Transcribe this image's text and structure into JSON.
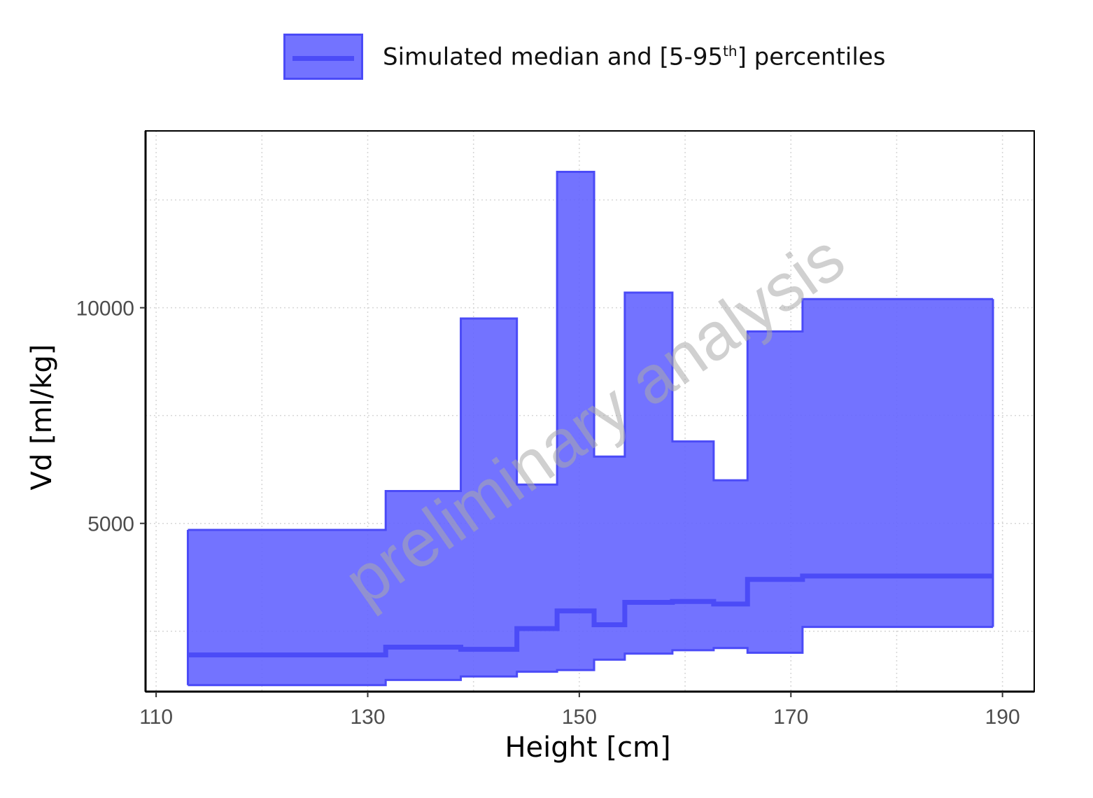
{
  "chart_data": {
    "type": "area",
    "legend": {
      "label_main": "Simulated median and [5-95",
      "label_sup": "th",
      "label_end": "] percentiles",
      "position": "top"
    },
    "xlabel": "Height [cm]",
    "ylabel": "Vd [ml/kg]",
    "x_ticks": [
      "110",
      "130",
      "150",
      "170",
      "190"
    ],
    "y_ticks": [
      "5000",
      "10000"
    ],
    "xlim": [
      109,
      193
    ],
    "ylim": [
      1100,
      14100
    ],
    "grid": true,
    "watermark": "preliminary analysis",
    "colors": {
      "fill": "#6464ff",
      "line": "#4b4bf7"
    },
    "bins": [
      {
        "x0": 113.0,
        "x1": 131.7,
        "median": 1950,
        "p5": 1250,
        "p95": 4850
      },
      {
        "x0": 131.7,
        "x1": 138.8,
        "median": 2130,
        "p5": 1370,
        "p95": 5750
      },
      {
        "x0": 138.8,
        "x1": 144.1,
        "median": 2080,
        "p5": 1450,
        "p95": 9750
      },
      {
        "x0": 144.1,
        "x1": 147.9,
        "median": 2560,
        "p5": 1560,
        "p95": 5900
      },
      {
        "x0": 147.9,
        "x1": 151.4,
        "median": 2970,
        "p5": 1600,
        "p95": 13150
      },
      {
        "x0": 151.4,
        "x1": 154.3,
        "median": 2650,
        "p5": 1840,
        "p95": 6550
      },
      {
        "x0": 154.3,
        "x1": 158.8,
        "median": 3170,
        "p5": 1980,
        "p95": 10350
      },
      {
        "x0": 158.8,
        "x1": 162.7,
        "median": 3190,
        "p5": 2060,
        "p95": 6900
      },
      {
        "x0": 162.7,
        "x1": 165.9,
        "median": 3130,
        "p5": 2110,
        "p95": 6000
      },
      {
        "x0": 165.9,
        "x1": 171.1,
        "median": 3700,
        "p5": 2000,
        "p95": 9450
      },
      {
        "x0": 171.1,
        "x1": 189.1,
        "median": 3780,
        "p5": 2600,
        "p95": 10200
      }
    ]
  }
}
